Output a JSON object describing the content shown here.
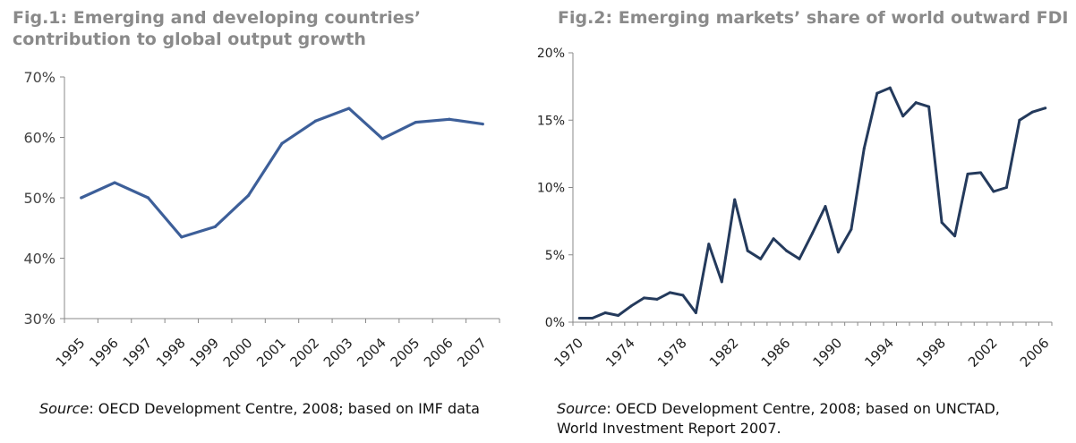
{
  "figures": {
    "fig1": {
      "title_line1": "Fig.1: Emerging and developing countries’",
      "title_line2": "contribution to global output growth",
      "source_label": "Source",
      "source_text": ": OECD Development Centre, 2008; based on IMF data"
    },
    "fig2": {
      "title": "Fig.2: Emerging markets’ share of world  outward FDI",
      "source_label": "Source",
      "source_text_line1": ": OECD Development Centre, 2008; based on UNCTAD,",
      "source_text_line2": "World Investment Report 2007."
    }
  },
  "colors": {
    "fig1_line": "#3d5f99",
    "fig2_line": "#243a5c",
    "axis": "#888888"
  },
  "chart_data": [
    {
      "type": "line",
      "title": "Fig.1: Emerging and developing countries’ contribution to global output growth",
      "xlabel": "",
      "ylabel": "",
      "categories": [
        "1995",
        "1996",
        "1997",
        "1998",
        "1999",
        "2000",
        "2001",
        "2002",
        "2003",
        "2004",
        "2005",
        "2006",
        "2007"
      ],
      "values": [
        50.0,
        52.5,
        50.0,
        43.5,
        45.2,
        50.4,
        59.0,
        62.7,
        64.8,
        59.8,
        62.5,
        63.0,
        62.2
      ],
      "ylim": [
        30,
        70
      ],
      "yticks": [
        30,
        40,
        50,
        60,
        70
      ],
      "ytick_labels": [
        "30%",
        "40%",
        "50%",
        "60%",
        "70%"
      ],
      "grid": false
    },
    {
      "type": "line",
      "title": "Fig.2: Emerging markets’ share of world  outward FDI",
      "xlabel": "",
      "ylabel": "",
      "x": [
        1970,
        1971,
        1972,
        1973,
        1974,
        1975,
        1976,
        1977,
        1978,
        1979,
        1980,
        1981,
        1982,
        1983,
        1984,
        1985,
        1986,
        1987,
        1988,
        1989,
        1990,
        1991,
        1992,
        1993,
        1994,
        1995,
        1996,
        1997,
        1998,
        1999,
        2000,
        2001,
        2002,
        2003,
        2004,
        2005,
        2006
      ],
      "values": [
        0.3,
        0.3,
        0.7,
        0.5,
        1.2,
        1.8,
        1.7,
        2.2,
        2.0,
        0.7,
        5.8,
        3.0,
        9.1,
        5.3,
        4.7,
        6.2,
        5.3,
        4.7,
        6.6,
        8.6,
        5.2,
        6.9,
        12.9,
        17.0,
        17.4,
        15.3,
        16.3,
        16.0,
        7.4,
        6.4,
        11.0,
        11.1,
        9.7,
        10.0,
        15.0,
        15.6,
        15.9
      ],
      "xtick_labels": [
        "1970",
        "1974",
        "1978",
        "1982",
        "1986",
        "1990",
        "1994",
        "1998",
        "2002",
        "2006"
      ],
      "ylim": [
        0,
        20
      ],
      "yticks": [
        0,
        5,
        10,
        15,
        20
      ],
      "ytick_labels": [
        "0%",
        "5%",
        "10%",
        "15%",
        "20%"
      ],
      "grid": false
    }
  ]
}
